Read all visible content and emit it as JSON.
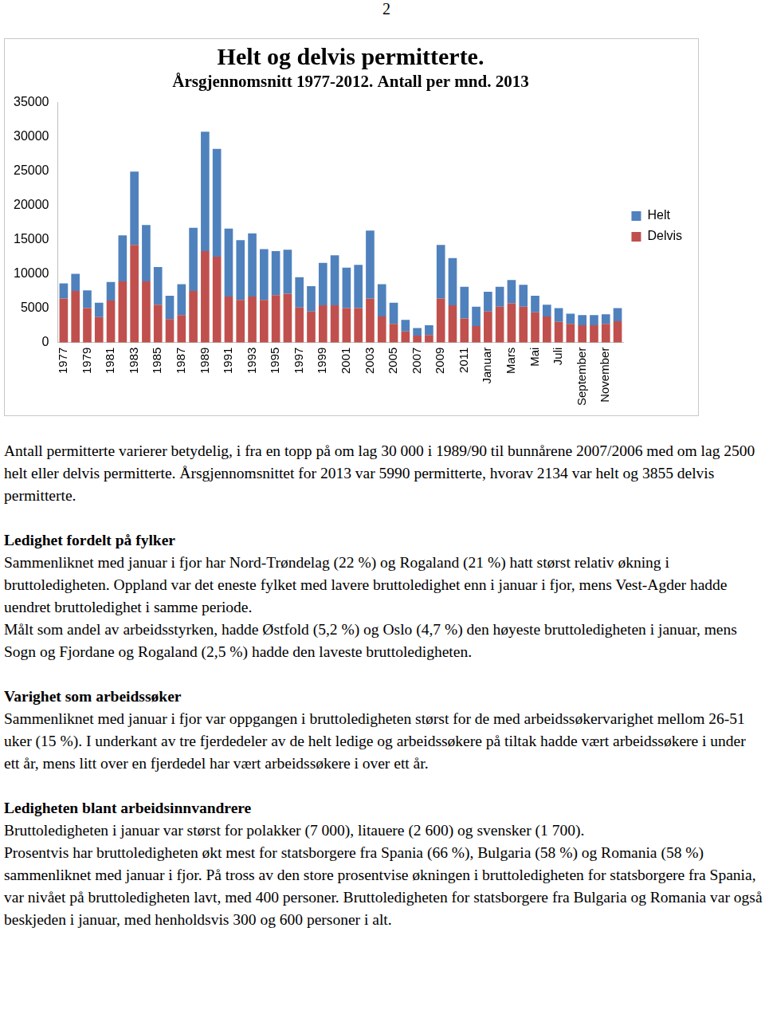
{
  "page_number": "2",
  "chart_data": {
    "type": "bar",
    "title": "Helt og delvis permitterte.",
    "subtitle": "Årsgjennomsnitt 1977-2012. Antall per mnd. 2013",
    "categories": [
      "1977",
      null,
      "1979",
      null,
      "1981",
      null,
      "1983",
      null,
      "1985",
      null,
      "1987",
      null,
      "1989",
      null,
      "1991",
      null,
      "1993",
      null,
      "1995",
      null,
      "1997",
      null,
      "1999",
      null,
      "2001",
      null,
      "2003",
      null,
      "2005",
      null,
      "2007",
      null,
      "2009",
      null,
      "2011",
      null,
      "Januar",
      null,
      "Mars",
      null,
      "Mai",
      null,
      "Juli",
      null,
      "September",
      null,
      "November",
      null
    ],
    "series": [
      {
        "name": "Delvis",
        "color": "#c0504d",
        "values": [
          6400,
          7500,
          5000,
          3700,
          6100,
          8900,
          14200,
          8900,
          5500,
          3400,
          4000,
          7500,
          13300,
          12500,
          6700,
          6200,
          6700,
          6200,
          6900,
          7100,
          5100,
          4500,
          5400,
          5400,
          5000,
          5000,
          6400,
          3800,
          2700,
          1600,
          1000,
          1100,
          6400,
          5400,
          3500,
          2400,
          4500,
          5200,
          5700,
          5200,
          4400,
          3800,
          3000,
          2700,
          2500,
          2500,
          2700,
          3100
        ]
      },
      {
        "name": "Helt",
        "color": "#4f81bd",
        "values": [
          2200,
          2500,
          2600,
          2100,
          2700,
          6700,
          10700,
          8200,
          5500,
          3400,
          4500,
          9200,
          17400,
          15700,
          9900,
          8700,
          9200,
          7400,
          6400,
          6400,
          4400,
          3700,
          6200,
          7300,
          5900,
          6300,
          9900,
          4700,
          3100,
          1700,
          1100,
          1400,
          7800,
          6900,
          4600,
          2800,
          2900,
          2900,
          3400,
          3200,
          2400,
          1700,
          2000,
          1500,
          1500,
          1500,
          1400,
          1900
        ]
      }
    ],
    "stacked": true,
    "ylim": [
      0,
      35000
    ],
    "yticks": [
      0,
      5000,
      10000,
      15000,
      20000,
      25000,
      30000,
      35000
    ],
    "grid": false,
    "legend": "right"
  },
  "intro": "Antall permitterte varierer betydelig, i fra en topp på om lag 30 000 i 1989/90 til bunnårene 2007/2006 med om lag 2500 helt eller delvis permitterte. Årsgjennomsnittet for 2013 var 5990 permitterte, hvorav  2134 var helt og 3855 delvis permitterte.",
  "sections": [
    {
      "heading": "Ledighet fordelt på fylker",
      "paragraphs": [
        "Sammenliknet med januar i fjor har Nord-Trøndelag (22 %) og Rogaland (21 %) hatt størst relativ økning i bruttoledigheten. Oppland var det eneste fylket med lavere bruttoledighet enn i januar i fjor, mens Vest-Agder hadde uendret bruttoledighet i samme periode.",
        "Målt som andel av arbeidsstyrken, hadde Østfold (5,2 %) og Oslo (4,7 %) den høyeste bruttoledigheten i januar, mens Sogn og Fjordane og Rogaland (2,5 %) hadde den laveste bruttoledigheten."
      ]
    },
    {
      "heading": "Varighet som arbeidssøker",
      "paragraphs": [
        "Sammenliknet med januar i fjor var oppgangen i bruttoledigheten størst for de med arbeidssøkervarighet mellom 26-51 uker (15 %). I underkant av tre fjerdedeler av de helt ledige og arbeidssøkere på tiltak hadde vært arbeidssøkere i under ett år, mens litt over en fjerdedel har vært arbeidssøkere i over ett år."
      ]
    },
    {
      "heading": "Ledigheten blant arbeidsinnvandrere",
      "paragraphs": [
        "Bruttoledigheten i januar var størst for polakker (7 000), litauere (2 600) og svensker (1 700).",
        "Prosentvis har bruttoledigheten økt mest for statsborgere fra Spania (66 %), Bulgaria (58 %) og Romania (58 %) sammenliknet med januar i fjor. På tross av den store prosentvise økningen i bruttoledigheten for statsborgere fra Spania, var nivået på bruttoledigheten lavt, med 400 personer. Bruttoledigheten for statsborgere fra Bulgaria og Romania var også beskjeden i januar, med henholdsvis 300 og 600 personer i alt."
      ]
    }
  ]
}
